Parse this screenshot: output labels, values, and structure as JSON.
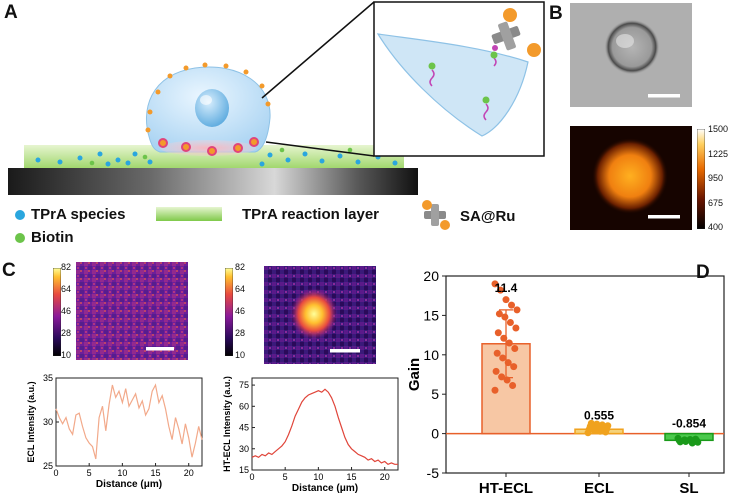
{
  "panels": {
    "a": "A",
    "b": "B",
    "c": "C",
    "d": "D"
  },
  "legend": {
    "tpra_species": "TPrA species",
    "biotin": "Biotin",
    "reaction_layer": "TPrA reaction layer",
    "sa_ru": "SA@Ru"
  },
  "colorbar_b": {
    "ticks": [
      "1500",
      "1225",
      "950",
      "675",
      "400"
    ]
  },
  "colorbar_c": {
    "ticks": [
      "82",
      "64",
      "46",
      "28",
      "10"
    ]
  },
  "chart_data": [
    {
      "type": "line",
      "panel": "C-left",
      "xlabel": "Distance (μm)",
      "ylabel": "ECL Intensity (a.u.)",
      "xlim": [
        0,
        22
      ],
      "ylim": [
        25,
        35
      ],
      "xticks": [
        0,
        5,
        10,
        15,
        20
      ],
      "yticks": [
        25,
        30,
        35
      ],
      "x": [
        0,
        0.5,
        1,
        1.5,
        2,
        2.5,
        3,
        3.5,
        4,
        4.5,
        5,
        5.5,
        6,
        6.5,
        7,
        7.5,
        8,
        8.5,
        9,
        9.5,
        10,
        10.5,
        11,
        11.5,
        12,
        12.5,
        13,
        13.5,
        14,
        14.5,
        15,
        15.5,
        16,
        16.5,
        17,
        17.5,
        18,
        18.5,
        19,
        19.5,
        20,
        20.5,
        21,
        21.5,
        22
      ],
      "y": [
        31.5,
        30.5,
        29.8,
        30.5,
        29.2,
        28.6,
        30.8,
        31.0,
        29.5,
        28.2,
        27.6,
        27.2,
        25.8,
        30.5,
        31.8,
        29.0,
        32.0,
        34.2,
        32.8,
        33.5,
        32.2,
        33.8,
        31.8,
        32.5,
        33.2,
        31.6,
        32.4,
        30.8,
        31.5,
        33.5,
        34.2,
        32.2,
        33.0,
        31.5,
        29.5,
        28.0,
        30.5,
        29.2,
        27.5,
        29.8,
        28.2,
        26.0,
        27.6,
        29.5,
        28.0
      ]
    },
    {
      "type": "line",
      "panel": "C-right",
      "xlabel": "Distance (μm)",
      "ylabel": "HT-ECL Intensity (a.u.)",
      "xlim": [
        0,
        22
      ],
      "ylim": [
        15,
        80
      ],
      "xticks": [
        0,
        5,
        10,
        15,
        20
      ],
      "yticks": [
        15,
        30,
        45,
        60,
        75
      ],
      "x": [
        0,
        0.5,
        1,
        1.5,
        2,
        2.5,
        3,
        3.5,
        4,
        4.5,
        5,
        5.5,
        6,
        6.5,
        7,
        7.5,
        8,
        8.5,
        9,
        9.5,
        10,
        10.5,
        11,
        11.5,
        12,
        12.5,
        13,
        13.5,
        14,
        14.5,
        15,
        15.5,
        16,
        16.5,
        17,
        17.5,
        18,
        18.5,
        19,
        19.5,
        20,
        20.5,
        21,
        21.5,
        22
      ],
      "y": [
        24,
        25,
        24,
        26,
        25,
        27,
        26,
        28,
        30,
        32,
        35,
        40,
        46,
        53,
        58,
        63,
        66,
        68,
        69,
        70,
        71,
        70,
        72,
        70,
        66,
        60,
        52,
        45,
        38,
        33,
        30,
        28,
        26,
        25,
        24,
        22,
        23,
        21,
        22,
        20,
        21,
        19,
        20,
        19,
        19
      ]
    },
    {
      "type": "bar",
      "panel": "D",
      "ylabel": "Gain",
      "ylim": [
        -5,
        20
      ],
      "yticks": [
        -5,
        0,
        5,
        10,
        15,
        20
      ],
      "categories": [
        "HT-ECL",
        "ECL",
        "SL"
      ],
      "values": [
        11.4,
        0.555,
        -0.854
      ],
      "value_labels": [
        "11.4",
        "0.555",
        "-0.854"
      ],
      "colors": [
        "#f7c7a4",
        "#f5d27a",
        "#4cc94c"
      ],
      "edge_colors": [
        "#e8602a",
        "#f0a21e",
        "#1a9a1a"
      ],
      "error": [
        4.3,
        0.5,
        0.25
      ],
      "points": [
        [
          5.5,
          6.1,
          6.8,
          7.2,
          7.9,
          8.5,
          9.0,
          9.6,
          10.2,
          10.8,
          11.5,
          12.1,
          12.8,
          13.4,
          14.1,
          14.8,
          15.2,
          15.7,
          16.3,
          17.0,
          18.2,
          19.0
        ],
        [
          0.1,
          0.2,
          0.3,
          0.4,
          0.5,
          0.6,
          0.7,
          0.8,
          0.9,
          1.0,
          1.1,
          1.2,
          1.3
        ],
        [
          -0.6,
          -0.7,
          -0.75,
          -0.8,
          -0.85,
          -0.9,
          -0.95,
          -1.0,
          -1.05,
          -1.1,
          -1.2
        ]
      ]
    }
  ]
}
